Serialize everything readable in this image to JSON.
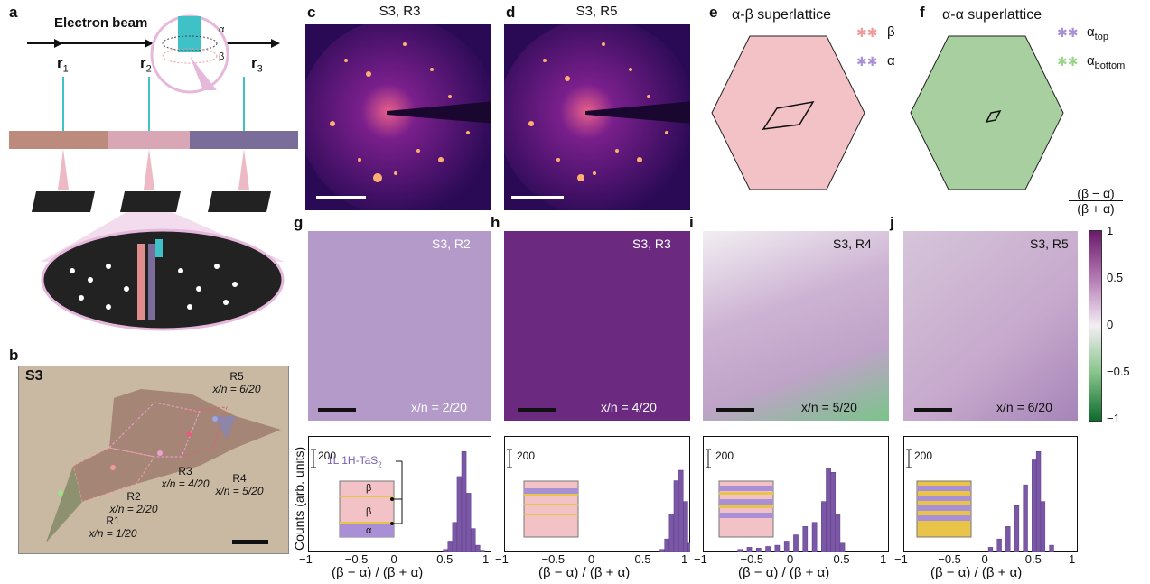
{
  "panels": {
    "a": {
      "letter": "a",
      "beam": "Electron beam",
      "alpha": "α",
      "beta": "β",
      "r1": "r",
      "r2": "r",
      "r3": "r",
      "s1": "1",
      "s2": "2",
      "s3": "3"
    },
    "b": {
      "letter": "b",
      "sample": "S3",
      "regions": [
        {
          "r": "R1",
          "x": "x/n = 1/20"
        },
        {
          "r": "R2",
          "x": "x/n = 2/20"
        },
        {
          "r": "R3",
          "x": "x/n = 4/20"
        },
        {
          "r": "R4",
          "x": "x/n = 5/20"
        },
        {
          "r": "R5",
          "x": "x/n = 6/20"
        }
      ]
    },
    "c": {
      "letter": "c",
      "title": "S3, R3"
    },
    "d": {
      "letter": "d",
      "title": "S3, R5"
    },
    "e": {
      "letter": "e",
      "title": "α-β superlattice",
      "beta": "β",
      "alpha": "α"
    },
    "f": {
      "letter": "f",
      "title": "α-α superlattice",
      "a_top": "α",
      "a_top_sub": "top",
      "a_bot": "α",
      "a_bot_sub": "bottom"
    },
    "g": {
      "letter": "g",
      "label": "S3, R2",
      "frac": "x/n = 2/20"
    },
    "h": {
      "letter": "h",
      "label": "S3, R3",
      "frac": "x/n = 4/20"
    },
    "i": {
      "letter": "i",
      "label": "S3, R4",
      "frac": "x/n = 5/20"
    },
    "j": {
      "letter": "j",
      "label": "S3, R5",
      "frac": "x/n = 6/20"
    }
  },
  "colorbar": {
    "num": "(β − α)",
    "den": "(β + α)",
    "ticks": [
      "1",
      "0.5",
      "0",
      "−0.5",
      "−1"
    ]
  },
  "hist": {
    "ylabel": "Counts (arb. units)",
    "xlabel": "(β − α) / (β + α)",
    "scale": "200",
    "inset_label": "1L 1H-TaS",
    "inset_label_sub": "2",
    "inset_layers": [
      "β",
      "β",
      "α"
    ],
    "xticks": [
      "−1",
      "−0.5",
      "0",
      "0.5",
      "1"
    ]
  },
  "chart_data": [
    {
      "type": "bar",
      "panel": "g",
      "x": [
        0.5,
        0.55,
        0.6,
        0.65,
        0.7,
        0.75,
        0.8,
        0.85,
        0.9
      ],
      "values": [
        5,
        25,
        70,
        180,
        240,
        140,
        55,
        15,
        3
      ],
      "xlim": [
        -1,
        1
      ]
    },
    {
      "type": "bar",
      "panel": "h",
      "x": [
        0.7,
        0.75,
        0.8,
        0.85,
        0.9,
        0.95,
        1.0
      ],
      "values": [
        5,
        30,
        90,
        170,
        195,
        120,
        20
      ],
      "xlim": [
        -1,
        1
      ]
    },
    {
      "type": "bar",
      "panel": "i",
      "x": [
        -0.6,
        -0.5,
        -0.4,
        -0.3,
        -0.2,
        -0.1,
        0.0,
        0.1,
        0.2,
        0.3,
        0.35,
        0.4,
        0.45,
        0.5
      ],
      "values": [
        5,
        10,
        8,
        12,
        15,
        25,
        40,
        60,
        70,
        120,
        200,
        190,
        90,
        20
      ],
      "xlim": [
        -1,
        1
      ]
    },
    {
      "type": "bar",
      "panel": "j",
      "x": [
        0.0,
        0.1,
        0.2,
        0.3,
        0.4,
        0.5,
        0.55,
        0.6,
        0.7
      ],
      "values": [
        10,
        30,
        60,
        110,
        160,
        220,
        240,
        120,
        15
      ],
      "xlim": [
        -1,
        1
      ]
    }
  ],
  "colors": {
    "accent": "#7b3f9a",
    "hexfill_e": "#f3c2c7",
    "hexfill_f": "#a8cfa0",
    "hexbeam": "#3ec1c7"
  }
}
